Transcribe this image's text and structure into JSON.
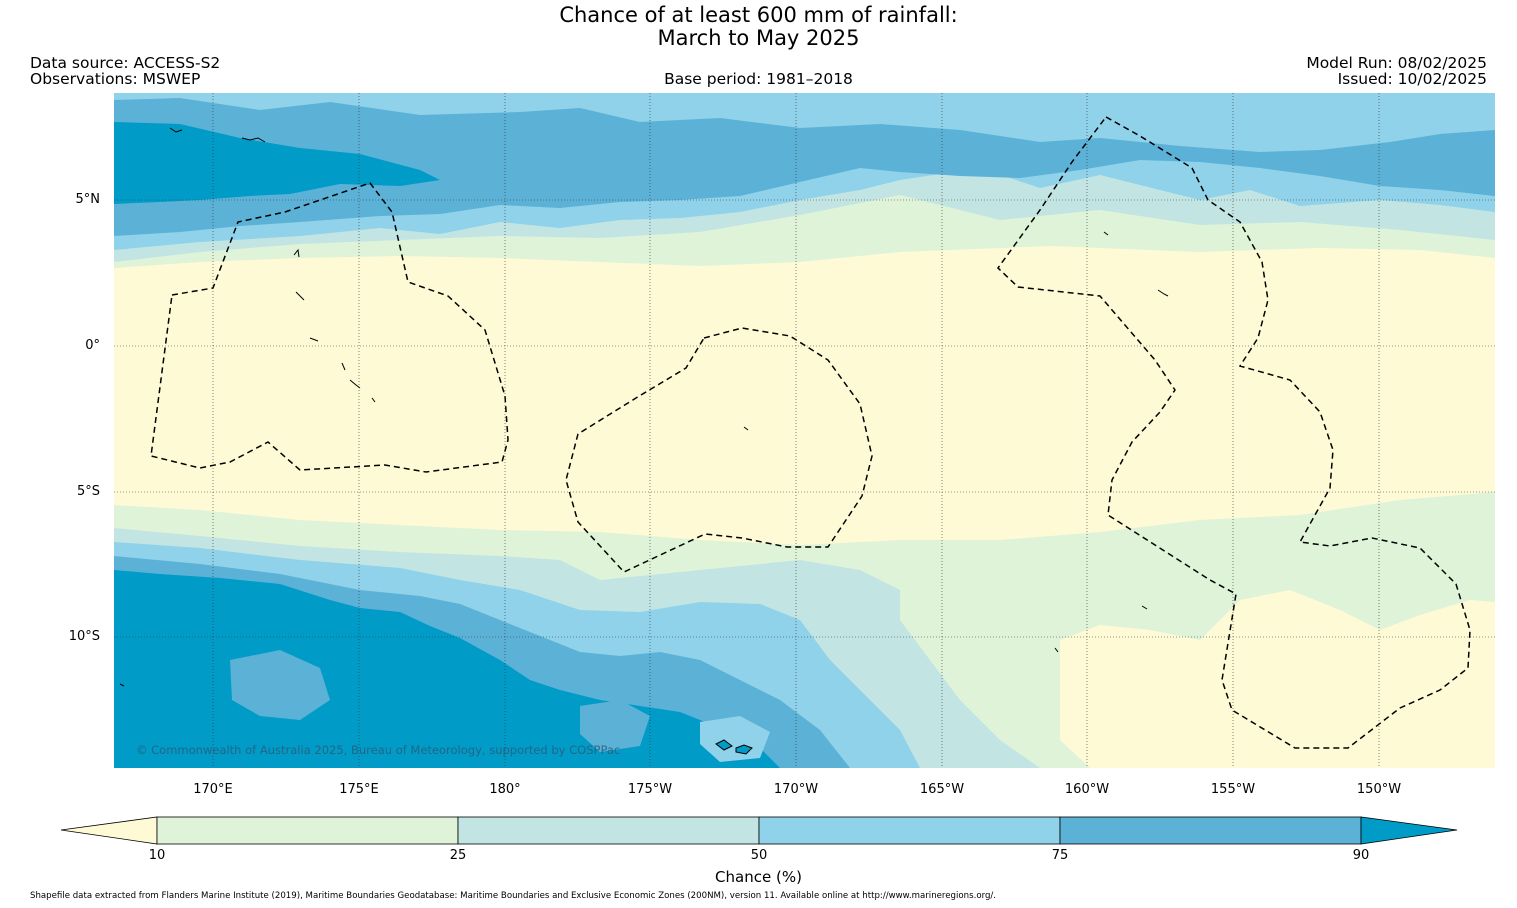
{
  "header": {
    "title_line1": "Chance of at least 600 mm of rainfall:",
    "title_line2": "March to May 2025",
    "data_source": "Data source: ACCESS-S2",
    "observations": "Observations: MSWEP",
    "base_period": "Base period: 1981–2018",
    "model_run": "Model Run: 08/02/2025",
    "issued": "Issued: 10/02/2025"
  },
  "map": {
    "lat_labels": [
      "5°N",
      "0°",
      "5°S",
      "10°S"
    ],
    "lon_labels": [
      "170°E",
      "175°E",
      "180°",
      "175°W",
      "170°W",
      "165°W",
      "160°W",
      "155°W",
      "150°W"
    ],
    "copyright": "© Commonwealth of Australia 2025, Bureau of Meteorology, supported by COSPPac",
    "boundary_style": "dashed EEZ outlines",
    "land_outline_color": "#000000"
  },
  "colorbar": {
    "ticks": [
      "10",
      "25",
      "50",
      "75",
      "90"
    ],
    "label": "Chance (%)",
    "colors": {
      "below_10": "#fefad6",
      "10_25": "#dff3d9",
      "25_50": "#c2e5e4",
      "50_75": "#8fd2e9",
      "75_90": "#5cb1d7",
      "above_90": "#009bc7"
    }
  },
  "footer": {
    "text": "Shapefile data extracted from Flanders Marine Institute (2019), Maritime Boundaries Geodatabase: Maritime Boundaries and Exclusive Economic Zones (200NM), version 11. Available online at http://www.marineregions.org/."
  }
}
